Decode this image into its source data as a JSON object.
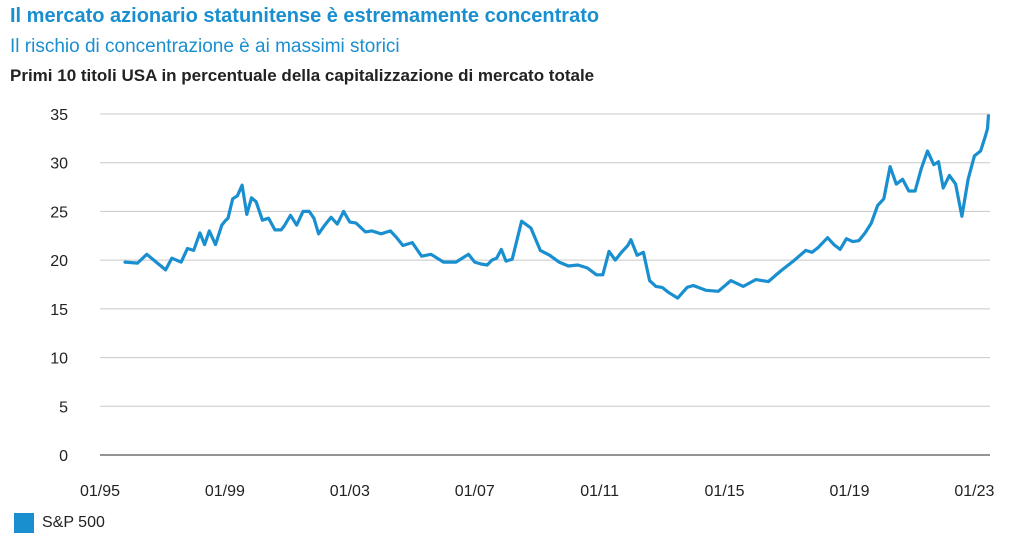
{
  "header": {
    "title": "Il mercato azionario statunitense è estremamente concentrato",
    "subtitle": "Il rischio di concentrazione è ai massimi storici",
    "chart_title": "Primi 10 titoli USA in percentuale della capitalizzazione di mercato totale"
  },
  "colors": {
    "accent": "#1a8fd0",
    "text": "#222222",
    "grid": "#c8c8c8"
  },
  "chart_data": {
    "type": "line",
    "title": "Primi 10 titoli USA in percentuale della capitalizzazione di mercato totale",
    "xlabel": "",
    "ylabel": "",
    "xlim": [
      1995.0,
      2023.5
    ],
    "ylim": [
      0,
      35
    ],
    "yticks": [
      0,
      5,
      10,
      15,
      20,
      25,
      30,
      35
    ],
    "xticks": [
      {
        "value": 1995.0,
        "label": "01/95"
      },
      {
        "value": 1999.0,
        "label": "01/99"
      },
      {
        "value": 2003.0,
        "label": "01/03"
      },
      {
        "value": 2007.0,
        "label": "01/07"
      },
      {
        "value": 2011.0,
        "label": "01/11"
      },
      {
        "value": 2015.0,
        "label": "01/15"
      },
      {
        "value": 2019.0,
        "label": "01/19"
      },
      {
        "value": 2023.0,
        "label": "01/23"
      }
    ],
    "grid": "horizontal",
    "legend": "bottom-left",
    "series": [
      {
        "name": "S&P 500",
        "color": "#1a8fd0",
        "x": [
          1995.8,
          1996.2,
          1996.5,
          1996.8,
          1997.1,
          1997.3,
          1997.6,
          1997.8,
          1998.0,
          1998.2,
          1998.35,
          1998.5,
          1998.7,
          1998.9,
          1999.0,
          1999.1,
          1999.25,
          1999.4,
          1999.55,
          1999.7,
          1999.85,
          2000.0,
          2000.2,
          2000.4,
          2000.6,
          2000.8,
          2000.9,
          2001.1,
          2001.3,
          2001.5,
          2001.7,
          2001.85,
          2002.0,
          2002.2,
          2002.4,
          2002.6,
          2002.8,
          2003.0,
          2003.2,
          2003.5,
          2003.7,
          2004.0,
          2004.3,
          2004.5,
          2004.7,
          2005.0,
          2005.3,
          2005.6,
          2006.0,
          2006.4,
          2006.8,
          2007.0,
          2007.2,
          2007.4,
          2007.55,
          2007.7,
          2007.85,
          2008.0,
          2008.2,
          2008.5,
          2008.8,
          2009.1,
          2009.4,
          2009.7,
          2010.0,
          2010.3,
          2010.6,
          2010.9,
          2011.1,
          2011.3,
          2011.5,
          2011.7,
          2011.9,
          2012.0,
          2012.2,
          2012.4,
          2012.6,
          2012.8,
          2013.0,
          2013.2,
          2013.5,
          2013.8,
          2014.0,
          2014.4,
          2014.8,
          2015.2,
          2015.6,
          2016.0,
          2016.4,
          2016.8,
          2017.2,
          2017.6,
          2017.8,
          2018.0,
          2018.3,
          2018.5,
          2018.7,
          2018.9,
          2019.1,
          2019.3,
          2019.5,
          2019.7,
          2019.9,
          2020.1,
          2020.3,
          2020.5,
          2020.7,
          2020.9,
          2021.1,
          2021.3,
          2021.5,
          2021.7,
          2021.85,
          2022.0,
          2022.2,
          2022.4,
          2022.6,
          2022.8,
          2023.0,
          2023.2,
          2023.35,
          2023.42,
          2023.45
        ],
        "values": [
          19.8,
          19.7,
          20.6,
          19.8,
          19.0,
          20.2,
          19.8,
          21.2,
          21.0,
          22.8,
          21.6,
          23.0,
          21.6,
          23.6,
          24.0,
          24.3,
          26.3,
          26.6,
          27.7,
          24.7,
          26.4,
          26.0,
          24.1,
          24.3,
          23.1,
          23.1,
          23.5,
          24.6,
          23.6,
          25.0,
          25.0,
          24.3,
          22.7,
          23.6,
          24.4,
          23.7,
          25.0,
          23.9,
          23.8,
          22.9,
          23.0,
          22.7,
          23.0,
          22.3,
          21.5,
          21.8,
          20.4,
          20.6,
          19.8,
          19.8,
          20.6,
          19.8,
          19.6,
          19.5,
          20.0,
          20.2,
          21.1,
          19.9,
          20.1,
          24.0,
          23.3,
          21.0,
          20.5,
          19.8,
          19.4,
          19.5,
          19.2,
          18.5,
          18.5,
          20.9,
          20.0,
          20.8,
          21.5,
          22.1,
          20.5,
          20.8,
          17.9,
          17.3,
          17.2,
          16.7,
          16.1,
          17.2,
          17.4,
          16.9,
          16.8,
          17.9,
          17.3,
          18.0,
          17.8,
          18.9,
          19.9,
          21.0,
          20.8,
          21.3,
          22.3,
          21.6,
          21.1,
          22.2,
          21.9,
          22.0,
          22.8,
          23.8,
          25.6,
          26.3,
          29.6,
          27.8,
          28.3,
          27.1,
          27.1,
          29.4,
          31.2,
          29.8,
          30.1,
          27.4,
          28.7,
          27.8,
          24.5,
          28.3,
          30.7,
          31.2,
          32.7,
          33.5,
          34.8
        ]
      }
    ]
  },
  "legend_items": [
    {
      "label": "S&P 500",
      "color": "#1a8fd0"
    }
  ]
}
